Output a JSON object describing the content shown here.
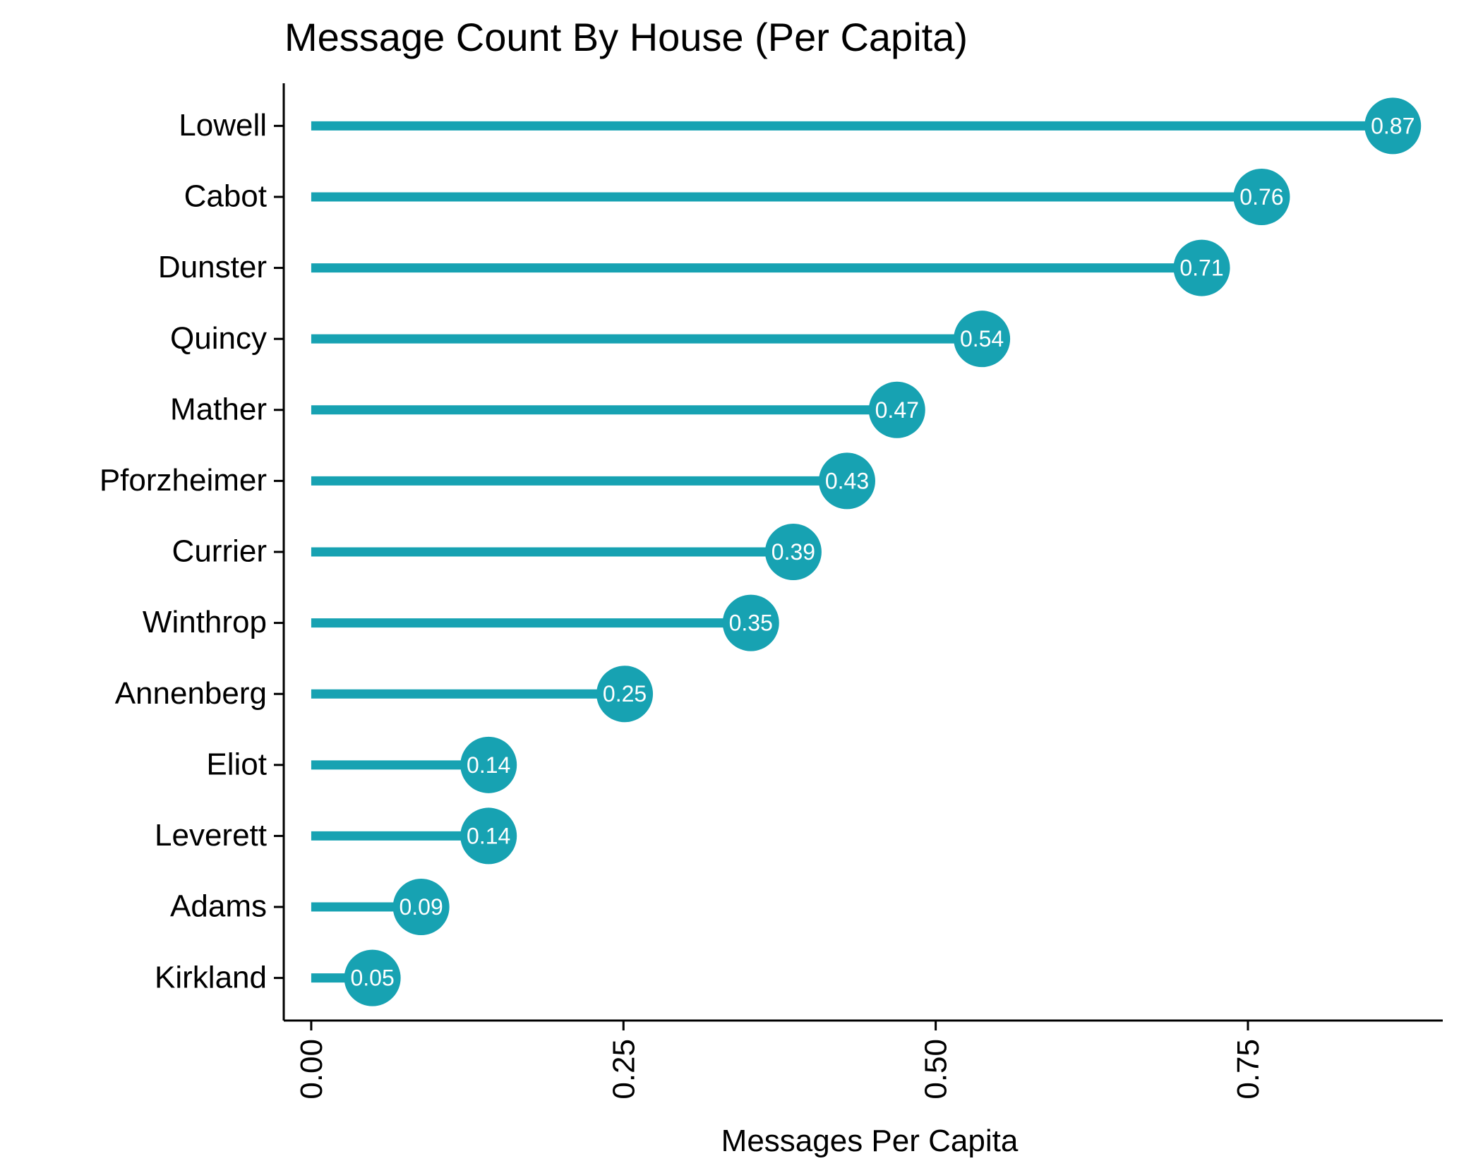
{
  "chart_data": {
    "type": "lollipop",
    "title": "Message Count By House (Per Capita)",
    "xlabel": "Messages Per Capita",
    "ylabel": "",
    "orientation": "horizontal",
    "xlim": [
      -0.022,
      0.906
    ],
    "xticks": [
      0.0,
      0.25,
      0.5,
      0.75
    ],
    "xtick_labels": [
      "0.00",
      "0.25",
      "0.50",
      "0.75"
    ],
    "categories": [
      "Lowell",
      "Cabot",
      "Dunster",
      "Quincy",
      "Mather",
      "Pforzheimer",
      "Currier",
      "Winthrop",
      "Annenberg",
      "Eliot",
      "Leverett",
      "Adams",
      "Kirkland"
    ],
    "values": [
      0.866,
      0.761,
      0.713,
      0.537,
      0.469,
      0.429,
      0.386,
      0.352,
      0.251,
      0.142,
      0.142,
      0.088,
      0.049
    ],
    "value_labels": [
      "0.87",
      "0.76",
      "0.71",
      "0.54",
      "0.47",
      "0.43",
      "0.39",
      "0.35",
      "0.25",
      "0.14",
      "0.14",
      "0.09",
      "0.05"
    ],
    "grid": false,
    "legend": "none",
    "color": "#17a2b2"
  }
}
